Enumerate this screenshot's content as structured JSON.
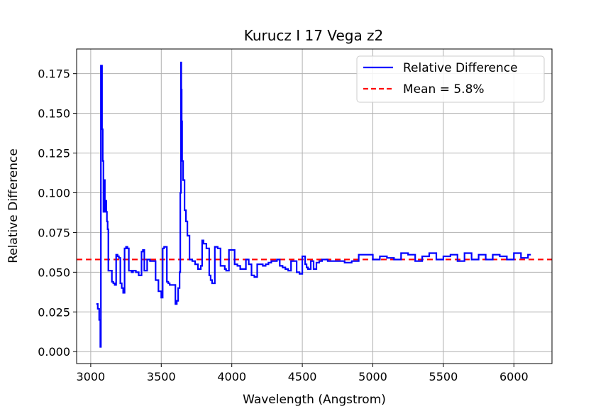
{
  "chart_data": {
    "type": "line",
    "title": "Kurucz I 17 Vega z2",
    "xlabel": "Wavelength (Angstrom)",
    "ylabel": "Relative Difference",
    "xlim": [
      2900,
      6270
    ],
    "ylim": [
      -0.0075,
      0.1905
    ],
    "xticks": [
      3000,
      3500,
      4000,
      4500,
      5000,
      5500,
      6000
    ],
    "xtick_labels": [
      "3000",
      "3500",
      "4000",
      "4500",
      "5000",
      "5500",
      "6000"
    ],
    "yticks": [
      0.0,
      0.025,
      0.05,
      0.075,
      0.1,
      0.125,
      0.15,
      0.175
    ],
    "ytick_labels": [
      "0.000",
      "0.025",
      "0.050",
      "0.075",
      "0.100",
      "0.125",
      "0.150",
      "0.175"
    ],
    "grid": true,
    "legend_position": "top-right",
    "series": [
      {
        "name": "Relative Difference",
        "color": "#0000ff",
        "style": "solid",
        "x": [
          3040,
          3050,
          3060,
          3068,
          3072,
          3080,
          3085,
          3090,
          3095,
          3100,
          3105,
          3110,
          3115,
          3120,
          3125,
          3130,
          3135,
          3140,
          3150,
          3160,
          3170,
          3180,
          3190,
          3200,
          3210,
          3220,
          3230,
          3240,
          3250,
          3260,
          3270,
          3280,
          3290,
          3300,
          3320,
          3340,
          3360,
          3370,
          3380,
          3390,
          3400,
          3410,
          3420,
          3440,
          3460,
          3480,
          3500,
          3510,
          3520,
          3530,
          3540,
          3550,
          3560,
          3580,
          3600,
          3610,
          3620,
          3630,
          3635,
          3640,
          3642,
          3645,
          3648,
          3655,
          3665,
          3675,
          3685,
          3700,
          3720,
          3740,
          3760,
          3780,
          3790,
          3800,
          3820,
          3840,
          3850,
          3860,
          3880,
          3900,
          3920,
          3930,
          3950,
          3960,
          3980,
          4000,
          4020,
          4040,
          4060,
          4080,
          4100,
          4120,
          4140,
          4160,
          4180,
          4200,
          4220,
          4240,
          4260,
          4280,
          4300,
          4320,
          4340,
          4360,
          4380,
          4400,
          4420,
          4440,
          4460,
          4480,
          4500,
          4520,
          4530,
          4540,
          4560,
          4580,
          4600,
          4620,
          4640,
          4660,
          4680,
          4700,
          4750,
          4800,
          4850,
          4900,
          4950,
          5000,
          5050,
          5100,
          5150,
          5200,
          5250,
          5300,
          5350,
          5400,
          5450,
          5500,
          5550,
          5600,
          5650,
          5700,
          5750,
          5800,
          5850,
          5900,
          5950,
          6000,
          6050,
          6100,
          6120
        ],
        "y": [
          0.03,
          0.027,
          0.02,
          0.003,
          0.18,
          0.14,
          0.12,
          0.088,
          0.108,
          0.088,
          0.095,
          0.088,
          0.082,
          0.077,
          0.051,
          0.051,
          0.051,
          0.051,
          0.044,
          0.043,
          0.042,
          0.061,
          0.06,
          0.059,
          0.043,
          0.04,
          0.037,
          0.065,
          0.066,
          0.065,
          0.051,
          0.051,
          0.05,
          0.051,
          0.05,
          0.048,
          0.063,
          0.064,
          0.051,
          0.051,
          0.058,
          0.058,
          0.057,
          0.057,
          0.045,
          0.038,
          0.034,
          0.065,
          0.066,
          0.066,
          0.044,
          0.043,
          0.042,
          0.042,
          0.03,
          0.032,
          0.04,
          0.05,
          0.1,
          0.182,
          0.165,
          0.145,
          0.12,
          0.108,
          0.089,
          0.082,
          0.073,
          0.058,
          0.057,
          0.055,
          0.052,
          0.054,
          0.07,
          0.068,
          0.065,
          0.048,
          0.045,
          0.043,
          0.066,
          0.065,
          0.054,
          0.054,
          0.052,
          0.051,
          0.064,
          0.064,
          0.055,
          0.054,
          0.052,
          0.052,
          0.058,
          0.055,
          0.048,
          0.047,
          0.055,
          0.055,
          0.054,
          0.055,
          0.056,
          0.057,
          0.057,
          0.058,
          0.054,
          0.053,
          0.052,
          0.051,
          0.057,
          0.057,
          0.05,
          0.049,
          0.06,
          0.055,
          0.053,
          0.052,
          0.057,
          0.052,
          0.056,
          0.057,
          0.058,
          0.058,
          0.057,
          0.057,
          0.057,
          0.056,
          0.057,
          0.061,
          0.061,
          0.058,
          0.06,
          0.059,
          0.058,
          0.062,
          0.061,
          0.057,
          0.06,
          0.062,
          0.058,
          0.06,
          0.061,
          0.057,
          0.062,
          0.058,
          0.061,
          0.058,
          0.061,
          0.06,
          0.058,
          0.062,
          0.059,
          0.061,
          0.061
        ]
      },
      {
        "name": "Mean = 5.8%",
        "color": "#ff0000",
        "style": "dashed",
        "value": 0.058
      }
    ]
  }
}
